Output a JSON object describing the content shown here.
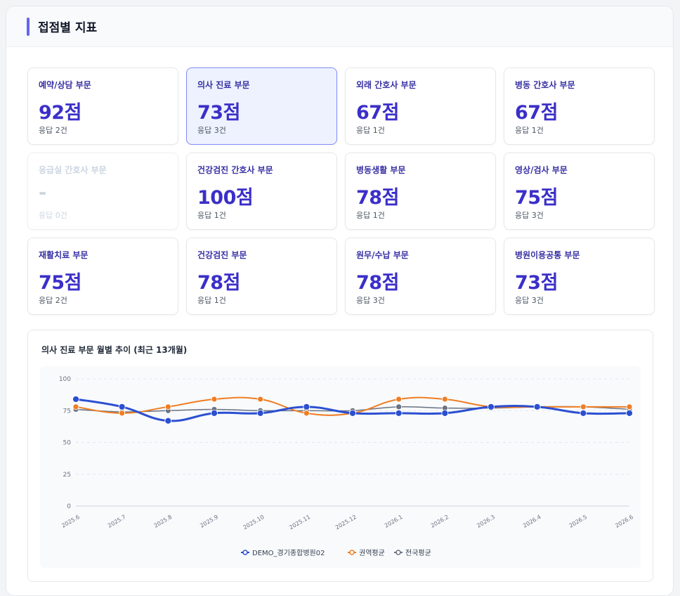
{
  "panel": {
    "title": "접점별 지표"
  },
  "cards": [
    {
      "label": "예약/상담 부문",
      "score": "92점",
      "count": "응답 2건",
      "state": "normal"
    },
    {
      "label": "의사 진료 부문",
      "score": "73점",
      "count": "응답 3건",
      "state": "active"
    },
    {
      "label": "외래 간호사 부문",
      "score": "67점",
      "count": "응답 1건",
      "state": "normal"
    },
    {
      "label": "병동 간호사 부문",
      "score": "67점",
      "count": "응답 1건",
      "state": "normal"
    },
    {
      "label": "응급실 간호사 부문",
      "score": "-",
      "count": "응답 0건",
      "state": "disabled"
    },
    {
      "label": "건강검진 간호사 부문",
      "score": "100점",
      "count": "응답 1건",
      "state": "normal"
    },
    {
      "label": "병동생활 부문",
      "score": "78점",
      "count": "응답 1건",
      "state": "normal"
    },
    {
      "label": "영상/검사 부문",
      "score": "75점",
      "count": "응답 3건",
      "state": "normal"
    },
    {
      "label": "재활치료 부문",
      "score": "75점",
      "count": "응답 2건",
      "state": "normal"
    },
    {
      "label": "건강검진 부문",
      "score": "78점",
      "count": "응답 1건",
      "state": "normal"
    },
    {
      "label": "원무/수납 부문",
      "score": "78점",
      "count": "응답 3건",
      "state": "normal"
    },
    {
      "label": "병원이용공통 부문",
      "score": "73점",
      "count": "응답 3건",
      "state": "normal"
    }
  ],
  "chart_data": {
    "type": "line",
    "title": "의사 진료 부문 월별 추이 (최근 13개월)",
    "categories": [
      "2025.6",
      "2025.7",
      "2025.8",
      "2025.9",
      "2025.10",
      "2025.11",
      "2025.12",
      "2026.1",
      "2026.2",
      "2026.3",
      "2026.4",
      "2026.5",
      "2026.6"
    ],
    "ylim": [
      0,
      100
    ],
    "yticks": [
      0,
      25,
      50,
      75,
      100
    ],
    "grid": true,
    "legend_position": "bottom",
    "series": [
      {
        "name": "DEMO_경기종합병원02",
        "color": "#2b4fd1",
        "values": [
          84,
          78,
          67,
          73,
          73,
          78,
          73,
          73,
          73,
          78,
          78,
          73,
          73
        ]
      },
      {
        "name": "권역평균",
        "color": "#ef7d22",
        "values": [
          78,
          73,
          78,
          84,
          84,
          73,
          73,
          84,
          84,
          78,
          78,
          78,
          78
        ]
      },
      {
        "name": "전국평균",
        "color": "#6b7280",
        "values": [
          76,
          74,
          75,
          76,
          75,
          75,
          75,
          78,
          77,
          77,
          78,
          78,
          76
        ]
      }
    ]
  }
}
